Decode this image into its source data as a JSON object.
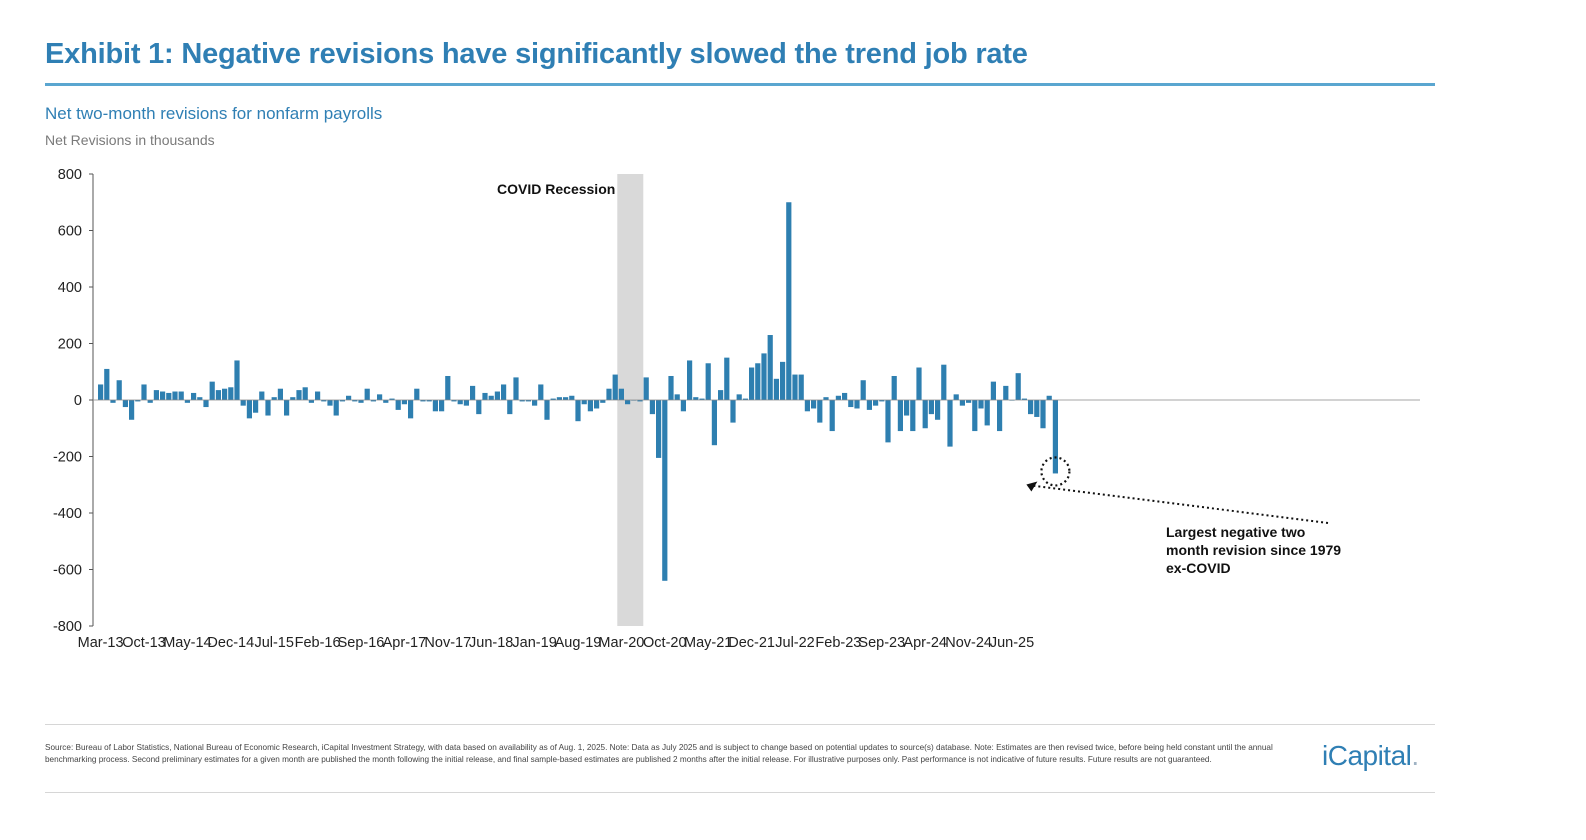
{
  "header": {
    "title": "Exhibit 1: Negative revisions have significantly slowed the trend job rate",
    "subtitle": "Net two-month revisions for nonfarm payrolls",
    "units": "Net Revisions in thousands"
  },
  "chart_data": {
    "type": "bar",
    "series": [
      {
        "color": "#2e7fb0"
      }
    ],
    "x_tick_labels": [
      "Mar-13",
      "Oct-13",
      "May-14",
      "Dec-14",
      "Jul-15",
      "Feb-16",
      "Sep-16",
      "Apr-17",
      "Nov-17",
      "Jun-18",
      "Jan-19",
      "Aug-19",
      "Mar-20",
      "Oct-20",
      "May-21",
      "Dec-21",
      "Jul-22",
      "Feb-23",
      "Sep-23",
      "Apr-24",
      "Nov-24",
      "Jun-25"
    ],
    "ylim": [
      -800,
      800
    ],
    "y_ticks": [
      800,
      600,
      400,
      200,
      0,
      -200,
      -400,
      -600,
      -800
    ],
    "months_start": "Mar-13",
    "values": [
      55,
      110,
      -10,
      70,
      -25,
      -70,
      -5,
      55,
      -10,
      35,
      30,
      25,
      30,
      30,
      -10,
      25,
      10,
      -25,
      65,
      35,
      40,
      45,
      140,
      -20,
      -65,
      -45,
      30,
      -55,
      10,
      40,
      -55,
      10,
      35,
      45,
      -10,
      30,
      -5,
      -20,
      -55,
      -5,
      15,
      -5,
      -10,
      40,
      -5,
      20,
      -10,
      5,
      -35,
      -15,
      -65,
      40,
      -5,
      -5,
      -40,
      -40,
      85,
      -5,
      -15,
      -20,
      50,
      -50,
      25,
      15,
      30,
      55,
      -50,
      80,
      -5,
      -5,
      -20,
      55,
      -70,
      5,
      10,
      10,
      15,
      -75,
      -15,
      -40,
      -30,
      -10,
      40,
      90,
      40,
      -15,
      0,
      -5,
      80,
      -50,
      -205,
      -640,
      85,
      20,
      -40,
      140,
      10,
      5,
      130,
      -160,
      35,
      150,
      -80,
      20,
      5,
      115,
      130,
      165,
      230,
      75,
      135,
      700,
      90,
      90,
      -40,
      -30,
      -80,
      10,
      -110,
      15,
      25,
      -25,
      -30,
      70,
      -35,
      -20,
      -5,
      -150,
      85,
      -110,
      -55,
      -110,
      115,
      -100,
      -50,
      -70,
      125,
      -165,
      20,
      -20,
      -10,
      -110,
      -30,
      -90,
      65,
      -110,
      50,
      0,
      95,
      5,
      -50,
      -60,
      -100,
      15,
      -260
    ],
    "shaded_region": {
      "label": "COVID Recession",
      "start": "Mar-20",
      "end": "Apr-20"
    },
    "annotation": {
      "lines": [
        "Largest negative two",
        "month revision since 1979",
        "ex-COVID"
      ],
      "target": "Jun-25"
    },
    "grid": false
  },
  "footer": {
    "source": "Source: Bureau of Labor Statistics, National Bureau of Economic Research, iCapital Investment Strategy, with data based on availability as of Aug. 1, 2025. Note: Data as July 2025 and is subject to change based on potential updates to source(s) database. Note: Estimates are then revised twice, before being held constant until the annual benchmarking process. Second preliminary estimates for a given month are published the month following the initial release, and final sample-based estimates are published 2 months after the initial release. For illustrative purposes only. Past performance is not indicative of future results. Future results are not guaranteed.",
    "logo_text": "iCapital",
    "logo_dot": "."
  }
}
